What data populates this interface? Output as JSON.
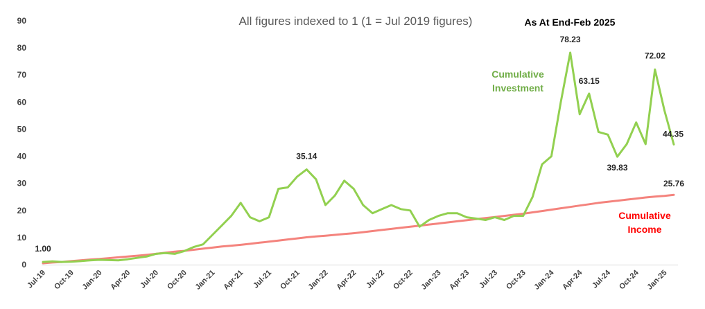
{
  "chart_data": {
    "type": "line",
    "title": "All figures indexed to 1 (1 = Jul 2019 figures)",
    "annotation": "As At End-Feb 2025",
    "ylim": [
      0,
      90
    ],
    "yticks": [
      "0",
      "10",
      "20",
      "30",
      "40",
      "50",
      "60",
      "70",
      "80",
      "90"
    ],
    "grid": false,
    "x_tick_labels": [
      "Jul-19",
      "Oct-19",
      "Jan-20",
      "Apr-20",
      "Jul-20",
      "Oct-20",
      "Jan-21",
      "Apr-21",
      "Jul-21",
      "Oct-21",
      "Jan-22",
      "Apr-22",
      "Jul-22",
      "Oct-22",
      "Jan-23",
      "Apr-23",
      "Jul-23",
      "Oct-23",
      "Jan-24",
      "Apr-24",
      "Jul-24",
      "Oct-24",
      "Jan-25"
    ],
    "series": [
      {
        "name": "Cumulative Investment",
        "label_lines": [
          "Cumulative",
          "Investment"
        ],
        "color": "#92d050",
        "values": [
          1.0,
          1.2,
          1.0,
          1.1,
          1.3,
          1.6,
          1.8,
          1.7,
          1.6,
          2.0,
          2.5,
          3.0,
          4.0,
          4.3,
          4.0,
          5.0,
          6.5,
          7.5,
          11.0,
          14.5,
          18.0,
          22.8,
          17.5,
          16.0,
          17.5,
          28.0,
          28.5,
          32.5,
          35.14,
          31.5,
          22.0,
          25.5,
          31.0,
          28.0,
          22.0,
          19.0,
          20.5,
          22.0,
          20.5,
          20.0,
          14.0,
          16.5,
          18.0,
          19.0,
          19.0,
          17.5,
          17.0,
          16.5,
          17.5,
          16.5,
          18.0,
          18.0,
          25.0,
          37.0,
          40.0,
          60.0,
          78.23,
          55.5,
          63.15,
          49.0,
          48.0,
          39.83,
          44.5,
          52.5,
          44.5,
          72.02,
          57.0,
          44.35
        ]
      },
      {
        "name": "Cumulative Income",
        "label_lines": [
          "Cumulative",
          "Income"
        ],
        "color": "#f4837d",
        "values": [
          0.5,
          0.8,
          1.0,
          1.3,
          1.6,
          1.9,
          2.1,
          2.4,
          2.7,
          3.0,
          3.3,
          3.6,
          4.0,
          4.4,
          4.8,
          5.1,
          5.5,
          5.9,
          6.3,
          6.7,
          7.0,
          7.3,
          7.7,
          8.1,
          8.5,
          8.9,
          9.3,
          9.7,
          10.1,
          10.4,
          10.7,
          11.0,
          11.3,
          11.6,
          12.0,
          12.4,
          12.8,
          13.2,
          13.6,
          14.0,
          14.4,
          14.8,
          15.2,
          15.6,
          16.0,
          16.4,
          16.8,
          17.2,
          17.6,
          18.0,
          18.4,
          18.8,
          19.3,
          19.8,
          20.3,
          20.8,
          21.3,
          21.8,
          22.3,
          22.8,
          23.2,
          23.6,
          24.0,
          24.4,
          24.8,
          25.1,
          25.4,
          25.76
        ]
      }
    ],
    "data_labels": [
      {
        "series": 0,
        "index": 0,
        "text": "1.00"
      },
      {
        "series": 0,
        "index": 28,
        "text": "35.14"
      },
      {
        "series": 0,
        "index": 56,
        "text": "78.23"
      },
      {
        "series": 0,
        "index": 58,
        "text": "63.15"
      },
      {
        "series": 0,
        "index": 61,
        "text": "39.83"
      },
      {
        "series": 0,
        "index": 65,
        "text": "72.02"
      },
      {
        "series": 0,
        "index": 67,
        "text": "44.35"
      },
      {
        "series": 1,
        "index": 67,
        "text": "25.76"
      }
    ]
  }
}
